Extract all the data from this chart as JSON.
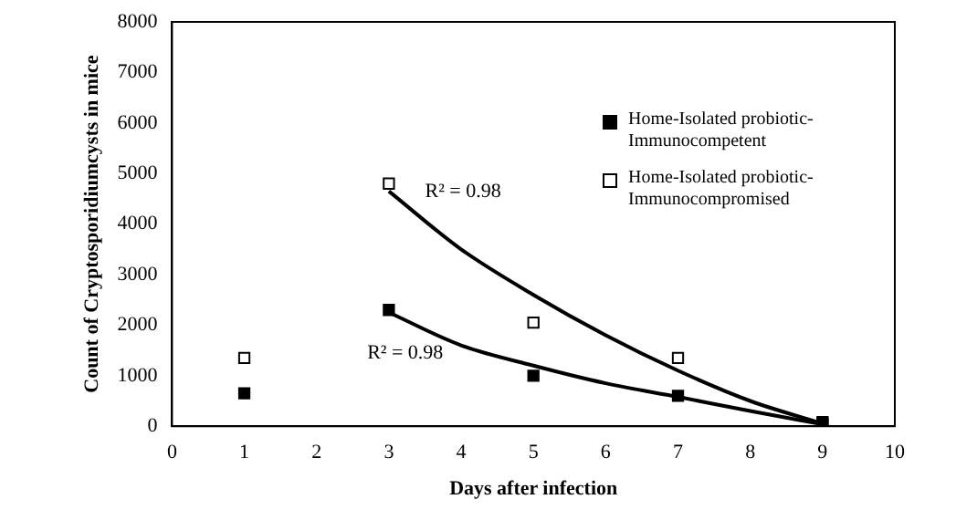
{
  "chart_data": {
    "type": "scatter",
    "xlabel": "Days after infection",
    "ylabel": "Count of Cryptosporidiumcysts in mice",
    "xlim": [
      0,
      10
    ],
    "xticks": [
      0,
      1,
      2,
      3,
      4,
      5,
      6,
      7,
      8,
      9,
      10
    ],
    "ylim": [
      0,
      8000
    ],
    "yticks": [
      0,
      1000,
      2000,
      3000,
      4000,
      5000,
      6000,
      7000,
      8000
    ],
    "grid": false,
    "legend": "top right",
    "marker": "square",
    "series": [
      {
        "name": "Home-Isolated probiotic-Immunocompetent",
        "color": "#000000",
        "x": [
          1,
          3,
          5,
          7,
          9
        ],
        "values": [
          650,
          2300,
          1000,
          600,
          50
        ]
      },
      {
        "name": "Home-Isolated probiotic-Immunocompromised",
        "color": "#ffffff",
        "x": [
          1,
          3,
          5,
          7,
          9
        ],
        "values": [
          1350,
          4800,
          2050,
          1350,
          80
        ]
      },
      {
        "type": "line",
        "marker": "none",
        "color": "#000000",
        "x": [
          3,
          4,
          5,
          6,
          7,
          8,
          9
        ],
        "values": [
          2250,
          1600,
          1200,
          850,
          580,
          300,
          40
        ]
      },
      {
        "type": "line",
        "marker": "none",
        "color": "#000000",
        "x": [
          3,
          4,
          5,
          6,
          7,
          8,
          9
        ],
        "values": [
          4650,
          3500,
          2600,
          1800,
          1100,
          500,
          50
        ]
      }
    ],
    "annotations": [
      "R² = 0.98",
      "R² = 0.98"
    ]
  }
}
